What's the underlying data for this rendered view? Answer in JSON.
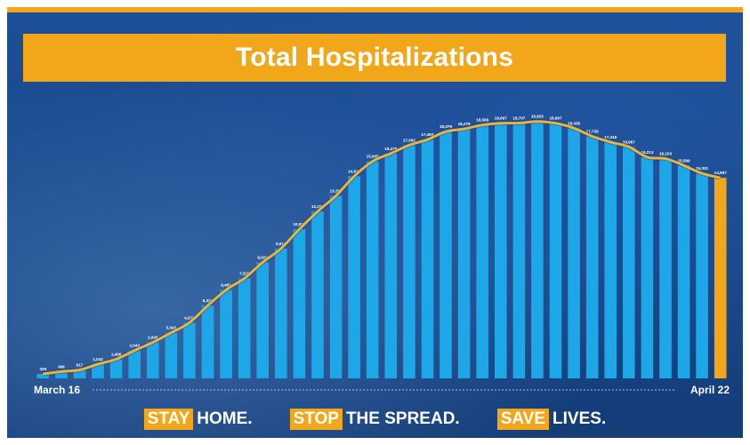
{
  "title": "Total Hospitalizations",
  "colors": {
    "accent": "#f2a71b",
    "bar": "#1ea7e8",
    "last_bar": "#f2a71b",
    "background": "#1c4f9a"
  },
  "footer": {
    "slogans": [
      {
        "highlight": "STAY",
        "text": "HOME."
      },
      {
        "highlight": "STOP",
        "text": "THE SPREAD."
      },
      {
        "highlight": "SAVE",
        "text": "LIVES."
      }
    ]
  },
  "chart_data": {
    "type": "bar",
    "title": "Total Hospitalizations",
    "x_start_label": "March 16",
    "x_end_label": "April 22",
    "ylim": [
      0,
      20000
    ],
    "trend_line": true,
    "highlight_last_bar": true,
    "values": [
      326,
      496,
      617,
      1042,
      1406,
      2043,
      2635,
      3343,
      4079,
      5327,
      6481,
      7328,
      8503,
      9517,
      10929,
      12226,
      13383,
      14810,
      15905,
      16479,
      17092,
      17493,
      18079,
      18279,
      18569,
      18697,
      18707,
      18825,
      18697,
      18335,
      17735,
      17316,
      16967,
      16213,
      16103,
      15599,
      15021,
      14697
    ]
  }
}
